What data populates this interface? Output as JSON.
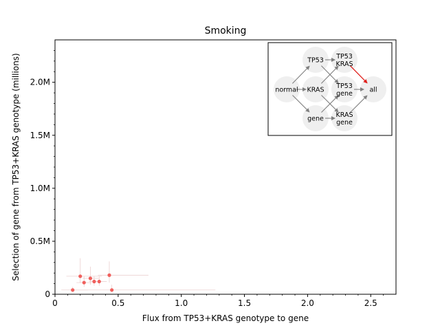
{
  "chart_data": {
    "type": "scatter",
    "title": "Smoking",
    "xlabel": "Flux from TP53+KRAS genotype to gene",
    "ylabel": "Selection of gene from TP53+KRAS genotype (millions)",
    "xlim": [
      0,
      2.7
    ],
    "ylim": [
      0,
      2.4
    ],
    "x_ticks": [
      0,
      0.5,
      1.0,
      1.5,
      2.0,
      2.5
    ],
    "x_tick_labels": [
      "0",
      "0.5",
      "1.0",
      "1.5",
      "2.0",
      "2.5"
    ],
    "y_ticks": [
      0,
      0.5,
      1.0,
      1.5,
      2.0
    ],
    "y_tick_labels": [
      "0",
      "0.5M",
      "1.0M",
      "1.5M",
      "2.0M"
    ],
    "grid": false,
    "marker_color": "#f0605d",
    "points": [
      {
        "x": 0.14,
        "y": 0.04,
        "xerr": [
          0.09,
          0.12
        ],
        "yerr": [
          0.02,
          0.03
        ]
      },
      {
        "x": 0.2,
        "y": 0.17,
        "xerr": [
          0.11,
          0.17
        ],
        "yerr": [
          0.06,
          0.17
        ]
      },
      {
        "x": 0.23,
        "y": 0.11,
        "xerr": [
          0.06,
          0.06
        ],
        "yerr": [
          0.04,
          0.06
        ]
      },
      {
        "x": 0.28,
        "y": 0.15,
        "xerr": [
          0.06,
          0.07
        ],
        "yerr": [
          0.06,
          0.11
        ]
      },
      {
        "x": 0.31,
        "y": 0.12,
        "xerr": [
          0.04,
          0.05
        ],
        "yerr": [
          0.04,
          0.05
        ]
      },
      {
        "x": 0.35,
        "y": 0.12,
        "xerr": [
          0.05,
          0.06
        ],
        "yerr": [
          0.04,
          0.05
        ]
      },
      {
        "x": 0.43,
        "y": 0.18,
        "xerr": [
          0.09,
          0.31
        ],
        "yerr": [
          0.07,
          0.13
        ]
      },
      {
        "x": 0.45,
        "y": 0.04,
        "xerr": [
          0.32,
          0.82
        ],
        "yerr": [
          0.02,
          0.05
        ]
      }
    ],
    "inset_diagram": {
      "nodes": [
        {
          "id": "normal",
          "lines": [
            "normal"
          ]
        },
        {
          "id": "tp53",
          "lines": [
            "TP53"
          ]
        },
        {
          "id": "kras",
          "lines": [
            "KRAS"
          ]
        },
        {
          "id": "gene",
          "lines": [
            "gene"
          ]
        },
        {
          "id": "tp53_kras",
          "lines": [
            "TP53",
            "KRAS"
          ]
        },
        {
          "id": "tp53_gene",
          "lines": [
            "TP53",
            "gene"
          ]
        },
        {
          "id": "kras_gene",
          "lines": [
            "KRAS",
            "gene"
          ]
        },
        {
          "id": "all",
          "lines": [
            "all"
          ]
        }
      ],
      "edges": [
        {
          "from": "normal",
          "to": "tp53"
        },
        {
          "from": "normal",
          "to": "kras"
        },
        {
          "from": "normal",
          "to": "gene"
        },
        {
          "from": "tp53",
          "to": "tp53_kras"
        },
        {
          "from": "tp53",
          "to": "tp53_gene"
        },
        {
          "from": "kras",
          "to": "tp53_kras"
        },
        {
          "from": "kras",
          "to": "kras_gene"
        },
        {
          "from": "gene",
          "to": "tp53_gene"
        },
        {
          "from": "gene",
          "to": "kras_gene"
        },
        {
          "from": "tp53_kras",
          "to": "all",
          "highlight": true
        },
        {
          "from": "tp53_gene",
          "to": "all"
        },
        {
          "from": "kras_gene",
          "to": "all"
        }
      ],
      "edge_color": "#808080",
      "highlight_color": "#e0201c",
      "node_fill": "#efefef"
    }
  }
}
